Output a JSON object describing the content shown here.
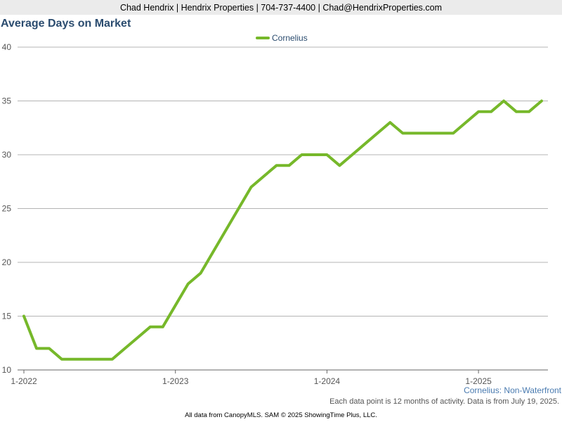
{
  "header": {
    "contact": "Chad Hendrix | Hendrix Properties | 704-737-4400 | Chad@HendrixProperties.com"
  },
  "footer": {
    "region": "Cornelius: Non-Waterfront",
    "note": "Each data point is 12 months of activity. Data is from July 19, 2025.",
    "source": "All data from CanopyMLS. SAM © 2025 ShowingTime Plus, LLC."
  },
  "chart_data": {
    "type": "line",
    "title": "Average Days on Market",
    "xlabel": "",
    "ylabel": "",
    "ylim": [
      10,
      40
    ],
    "yticks": [
      10,
      15,
      20,
      25,
      30,
      35,
      40
    ],
    "xticks": [
      "1-2022",
      "1-2023",
      "1-2024",
      "1-2025"
    ],
    "x": [
      "1-2022",
      "2-2022",
      "3-2022",
      "4-2022",
      "5-2022",
      "6-2022",
      "7-2022",
      "8-2022",
      "9-2022",
      "10-2022",
      "11-2022",
      "12-2022",
      "1-2023",
      "2-2023",
      "3-2023",
      "4-2023",
      "5-2023",
      "6-2023",
      "7-2023",
      "8-2023",
      "9-2023",
      "10-2023",
      "11-2023",
      "12-2023",
      "1-2024",
      "2-2024",
      "3-2024",
      "4-2024",
      "5-2024",
      "6-2024",
      "7-2024",
      "8-2024",
      "9-2024",
      "10-2024",
      "11-2024",
      "12-2024",
      "1-2025",
      "2-2025",
      "3-2025",
      "4-2025",
      "5-2025",
      "6-2025"
    ],
    "grid": true,
    "legend_position": "top-center",
    "series": [
      {
        "name": "Cornelius",
        "color": "#76b82a",
        "values": [
          15,
          12,
          12,
          11,
          11,
          11,
          11,
          11,
          12,
          13,
          14,
          14,
          16,
          18,
          19,
          21,
          23,
          25,
          27,
          28,
          29,
          29,
          30,
          30,
          30,
          29,
          30,
          31,
          32,
          33,
          32,
          32,
          32,
          32,
          32,
          33,
          34,
          34,
          35,
          34,
          34,
          35
        ]
      }
    ]
  }
}
